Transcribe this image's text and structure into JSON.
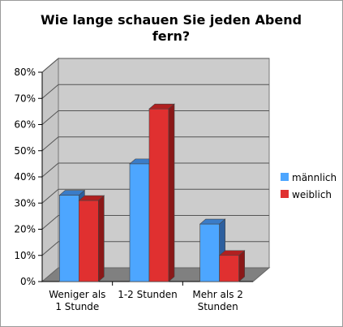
{
  "chart_data": {
    "type": "bar",
    "title_lines": [
      "Wie lange schauen Sie jeden Abend",
      "fern?"
    ],
    "categories": [
      [
        "Weniger als",
        "1 Stunde"
      ],
      [
        "1-2 Stunden"
      ],
      [
        "Mehr als 2",
        "Stunden"
      ]
    ],
    "series": [
      {
        "name": "männlich",
        "values": [
          33,
          45,
          22
        ],
        "color": "#4da6ff",
        "top_color": "#3a7cc8",
        "side_color": "#2d5f9e"
      },
      {
        "name": "weiblich",
        "values": [
          31,
          66,
          10
        ],
        "color": "#e03030",
        "top_color": "#b02020",
        "side_color": "#8a1818"
      }
    ],
    "y_ticks": [
      "0%",
      "10%",
      "20%",
      "30%",
      "40%",
      "50%",
      "60%",
      "70%",
      "80%"
    ],
    "ylim": [
      0,
      80
    ],
    "grid": true,
    "legend_position": "right",
    "plot_background": "#cccccc",
    "floor_color": "#808080"
  }
}
